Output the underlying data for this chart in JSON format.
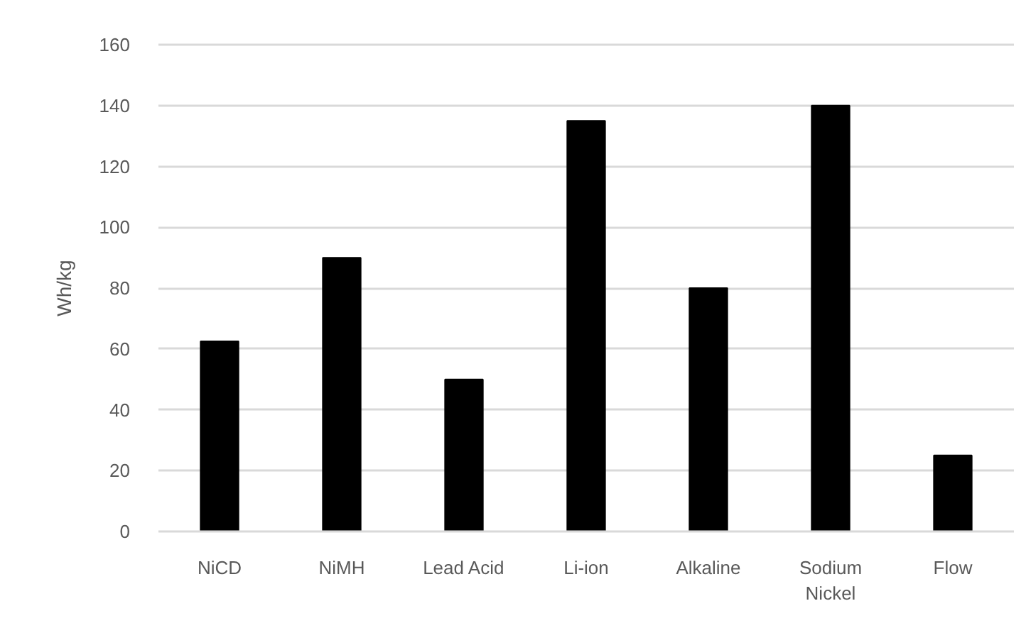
{
  "chart_data": {
    "type": "bar",
    "ylabel": "Wh/kg",
    "categories": [
      "NiCD",
      "NiMH",
      "Lead Acid",
      "Li-ion",
      "Alkaline",
      "Sodium Nickel",
      "Flow"
    ],
    "values": [
      62.5,
      90,
      50,
      135,
      80,
      140,
      25
    ],
    "color": "#000000",
    "ylim": [
      0,
      160
    ],
    "yticks": [
      0,
      20,
      40,
      60,
      80,
      100,
      120,
      140,
      160
    ],
    "grid": "y"
  }
}
